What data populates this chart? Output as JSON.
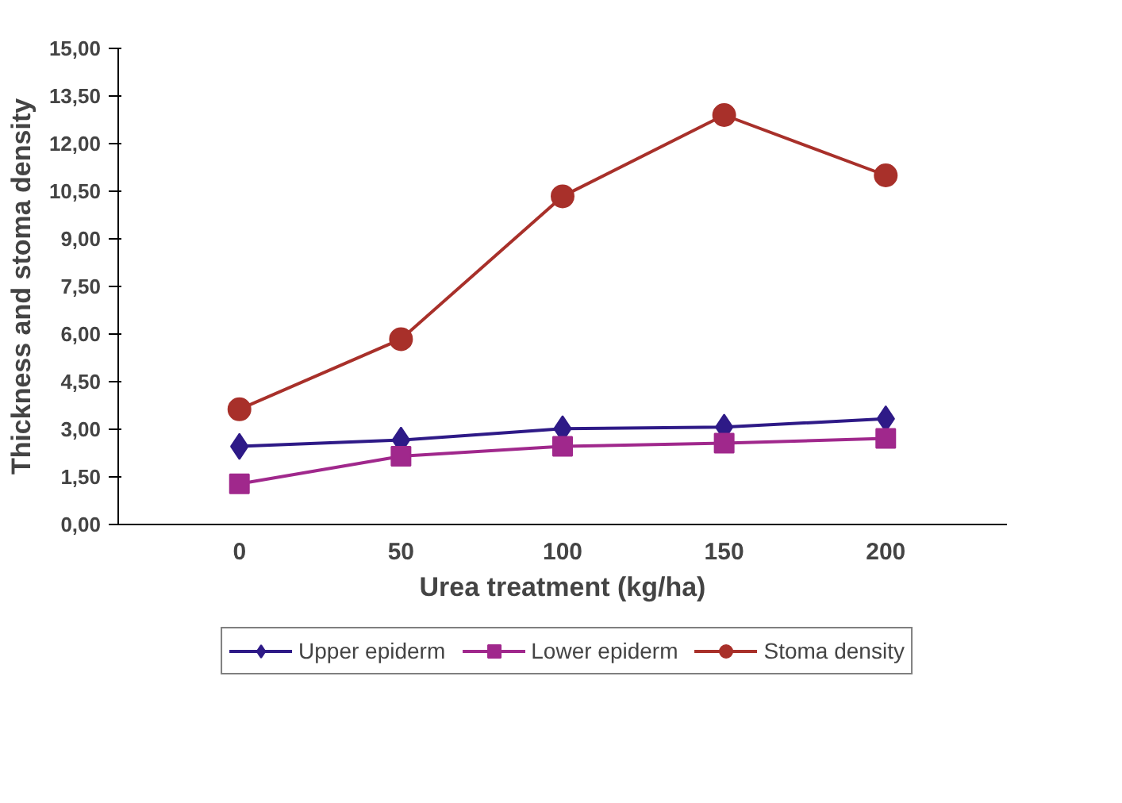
{
  "chart_data": {
    "type": "line",
    "xlabel": "Urea treatment (kg/ha)",
    "ylabel": "Thickness and stoma density",
    "categories": [
      "0",
      "50",
      "100",
      "150",
      "200"
    ],
    "ylim": [
      0,
      15
    ],
    "yticks": [
      {
        "value": 0,
        "label": "0,00"
      },
      {
        "value": 1.5,
        "label": "1,50"
      },
      {
        "value": 3,
        "label": "3,00"
      },
      {
        "value": 4.5,
        "label": "4,50"
      },
      {
        "value": 6,
        "label": "6,00"
      },
      {
        "value": 7.5,
        "label": "7,50"
      },
      {
        "value": 9,
        "label": "9,00"
      },
      {
        "value": 10.5,
        "label": "10,50"
      },
      {
        "value": 12,
        "label": "12,00"
      },
      {
        "value": 13.5,
        "label": "13,50"
      },
      {
        "value": 15,
        "label": "15,00"
      }
    ],
    "series": [
      {
        "name": "Upper epiderm",
        "color": "#2e1a87",
        "marker": "diamond",
        "values": [
          2.46,
          2.66,
          3.02,
          3.07,
          3.33
        ]
      },
      {
        "name": "Lower epiderm",
        "color": "#a0288c",
        "marker": "square",
        "values": [
          1.28,
          2.15,
          2.46,
          2.56,
          2.71
        ]
      },
      {
        "name": "Stoma density",
        "color": "#a8302a",
        "marker": "circle",
        "values": [
          3.63,
          5.84,
          10.34,
          12.9,
          11.0
        ]
      }
    ],
    "grid": false,
    "legend": "bottom",
    "line_style": "solid"
  }
}
